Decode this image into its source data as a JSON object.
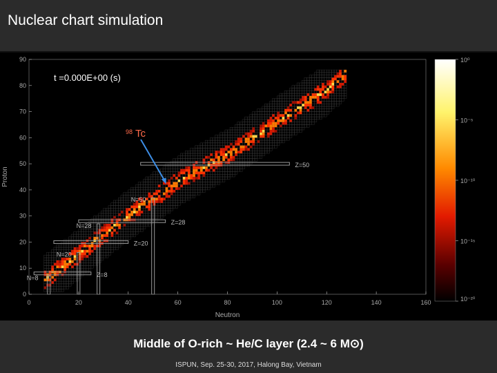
{
  "header": {
    "title": "Nuclear chart simulation"
  },
  "time_label": "t =0.000E+00 (s)",
  "footer": {
    "subtitle": "Middle of O-rich ~ He/C layer (2.4 ~ 6 M⊙)",
    "conference": "ISPUN, Sep. 25-30, 2017, Halong Bay, Vietnam"
  },
  "annotation": {
    "isotope_mass": "98",
    "isotope_symbol": "Tc",
    "target_n": 55,
    "target_z": 43
  },
  "magic_lines": [
    {
      "label": "N=50",
      "orientation": "neutron",
      "value": 50,
      "range": [
        0,
        37
      ]
    },
    {
      "label": "N=28",
      "orientation": "neutron",
      "value": 28,
      "range": [
        0,
        27
      ]
    },
    {
      "label": "N=20",
      "orientation": "neutron",
      "value": 20,
      "range": [
        0,
        16
      ]
    },
    {
      "label": "N=8",
      "orientation": "neutron",
      "value": 8,
      "range": [
        0,
        7
      ]
    },
    {
      "label": "Z=50",
      "orientation": "proton",
      "value": 50,
      "range": [
        45,
        105
      ]
    },
    {
      "label": "Z=28",
      "orientation": "proton",
      "value": 28,
      "range": [
        20,
        55
      ]
    },
    {
      "label": "Z=20",
      "orientation": "proton",
      "value": 20,
      "range": [
        10,
        40
      ]
    },
    {
      "label": "Z=8",
      "orientation": "proton",
      "value": 8,
      "range": [
        2,
        25
      ]
    }
  ],
  "chart_data": {
    "type": "heatmap",
    "xlabel": "Neutron",
    "ylabel": "Proton",
    "xlim": [
      0,
      160
    ],
    "ylim": [
      0,
      90
    ],
    "xticks": [
      "0",
      "20",
      "40",
      "60",
      "80",
      "100",
      "120",
      "140",
      "160"
    ],
    "yticks": [
      "0",
      "10",
      "20",
      "30",
      "40",
      "50",
      "60",
      "70",
      "80",
      "90"
    ],
    "colorbar_ticks": [
      "10⁰",
      "10⁻⁵",
      "10⁻¹⁰",
      "10⁻¹⁵",
      "10⁻²⁰"
    ],
    "colorbar_range": [
      1e-20,
      1
    ],
    "band_centerline": [
      [
        6,
        5
      ],
      [
        20,
        15
      ],
      [
        40,
        30
      ],
      [
        60,
        43
      ],
      [
        80,
        53
      ],
      [
        100,
        66
      ],
      [
        120,
        78
      ],
      [
        127,
        84
      ]
    ]
  },
  "colors": {
    "header_bg": "#2b2b2b",
    "plot_bg": "#000000",
    "hot": "#ff3300",
    "arrow": "#3d8ee6"
  }
}
